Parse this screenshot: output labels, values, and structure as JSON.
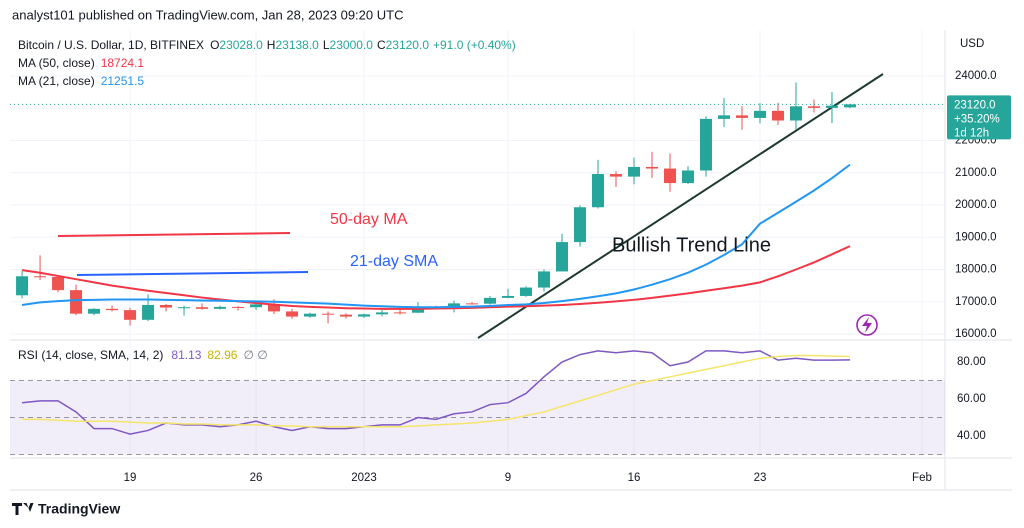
{
  "published": "analyst101 published on TradingView.com, Jan 28, 2023 09:20 UTC",
  "footer": "TradingView",
  "chart_data": [
    {
      "type": "candlestick",
      "title": "Bitcoin / U.S. Dollar, 1D, BITFINEX",
      "ohlc_header": [
        {
          "key": "O",
          "text": "23028.0"
        },
        {
          "key": "H",
          "text": "23138.0"
        },
        {
          "key": "L",
          "text": "23000.0"
        },
        {
          "key": "C",
          "text": "23120.0"
        }
      ],
      "change_text": "+91.0 (+0.40%)",
      "currency": "USD",
      "colors": {
        "up": "#26a69a",
        "down": "#ef5350"
      },
      "open": [
        17200,
        17790,
        17770,
        17360,
        16630,
        16780,
        16740,
        16440,
        16900,
        16820,
        16830,
        16780,
        16840,
        16830,
        16920,
        16700,
        16540,
        16630,
        16600,
        16540,
        16610,
        16670,
        16660,
        16850,
        16830,
        16950,
        16940,
        17120,
        17180,
        17440,
        17940,
        18850,
        19930,
        20960,
        20880,
        21180,
        21130,
        20680,
        21070,
        22670,
        22780,
        22700,
        22920,
        22620,
        23060,
        23010,
        23028
      ],
      "high": [
        17950,
        18440,
        17830,
        17530,
        16800,
        16880,
        16810,
        17230,
        16930,
        16880,
        16950,
        16880,
        16860,
        16960,
        17080,
        16780,
        16660,
        16700,
        16640,
        16630,
        16770,
        16760,
        16990,
        16880,
        17040,
        16990,
        17180,
        17400,
        17480,
        18000,
        19110,
        19990,
        21400,
        21050,
        21470,
        21650,
        21600,
        21200,
        22750,
        23320,
        23070,
        23160,
        23170,
        23800,
        23270,
        23500,
        23138
      ],
      "low": [
        17100,
        17670,
        17300,
        16580,
        16580,
        16700,
        16260,
        16400,
        16700,
        16570,
        16750,
        16760,
        16730,
        16750,
        16620,
        16470,
        16500,
        16330,
        16480,
        16500,
        16550,
        16600,
        16650,
        16760,
        16670,
        16910,
        16910,
        17110,
        17150,
        17320,
        17940,
        18710,
        19890,
        20560,
        20640,
        20840,
        20410,
        20650,
        20880,
        22420,
        22330,
        22530,
        22480,
        22330,
        22870,
        22540,
        23000
      ],
      "close": [
        17790,
        17770,
        17360,
        16630,
        16780,
        16740,
        16440,
        16900,
        16820,
        16830,
        16780,
        16840,
        16830,
        16920,
        16700,
        16540,
        16630,
        16600,
        16540,
        16610,
        16670,
        16660,
        16850,
        16830,
        16950,
        16940,
        17120,
        17180,
        17440,
        17940,
        18850,
        19930,
        20960,
        20880,
        21180,
        21130,
        20680,
        21070,
        22670,
        22780,
        22700,
        22920,
        22620,
        23060,
        23010,
        23080,
        23120
      ],
      "series": [
        {
          "name": "MA (50, close)",
          "color": "#f23645",
          "values": [
            17980,
            17900,
            17800,
            17700,
            17600,
            17500,
            17420,
            17340,
            17270,
            17200,
            17130,
            17070,
            17010,
            16960,
            16910,
            16870,
            16840,
            16820,
            16800,
            16790,
            16780,
            16780,
            16780,
            16790,
            16800,
            16810,
            16830,
            16850,
            16860,
            16880,
            16900,
            16930,
            16970,
            17010,
            17060,
            17120,
            17190,
            17260,
            17340,
            17420,
            17500,
            17600,
            17790,
            18000,
            18220,
            18470,
            18724.1
          ]
        },
        {
          "name": "MA (21, close)",
          "color": "#2196f3",
          "values": [
            16900,
            16980,
            17020,
            17050,
            17060,
            17070,
            17070,
            17070,
            17060,
            17050,
            17040,
            17030,
            17020,
            17010,
            17000,
            16980,
            16960,
            16940,
            16910,
            16880,
            16860,
            16840,
            16830,
            16830,
            16840,
            16850,
            16870,
            16900,
            16920,
            16960,
            17020,
            17090,
            17170,
            17260,
            17380,
            17530,
            17700,
            17900,
            18150,
            18450,
            18780,
            19420,
            19760,
            20100,
            20450,
            20830,
            21251.5
          ]
        }
      ],
      "last_price": {
        "text": "23120.0",
        "change": "+35.20%",
        "countdown": "1d 12h"
      },
      "annotations": [
        {
          "text": "50-day MA",
          "color": "#f23645"
        },
        {
          "text": "21-day SMA",
          "color": "#2962ff"
        },
        {
          "text": "Bullish Trend Line",
          "color": "#131722"
        }
      ],
      "ylim": [
        15814,
        25426
      ],
      "yticks": [
        {
          "value": 16000,
          "label": "16000.0"
        },
        {
          "value": 17000,
          "label": "17000.0"
        },
        {
          "value": 18000,
          "label": "18000.0"
        },
        {
          "value": 19000,
          "label": "19000.0"
        },
        {
          "value": 20000,
          "label": "20000.0"
        },
        {
          "value": 21000,
          "label": "21000.0"
        },
        {
          "value": 22000,
          "label": "22000.0"
        },
        {
          "value": 23000,
          "label": "23000.0"
        },
        {
          "value": 24000,
          "label": "24000.0"
        }
      ],
      "grid": true
    },
    {
      "type": "line",
      "title": "RSI (14, close, SMA, 14, 2)",
      "extra": "∅ ∅",
      "series": [
        {
          "name": "RSI",
          "color": "#7e57c2",
          "values": [
            58,
            59,
            59,
            53,
            44,
            44,
            41,
            43,
            47,
            46,
            46,
            45,
            46,
            48,
            45,
            43,
            45,
            44,
            44,
            45,
            46,
            46,
            50,
            49,
            52,
            53,
            57,
            58,
            63,
            72,
            80,
            84,
            86,
            85,
            86,
            85,
            78,
            80,
            86,
            86,
            85,
            86,
            81,
            82,
            81,
            81,
            81.13
          ]
        },
        {
          "name": "SMA",
          "color": "#f5e56b",
          "values": [
            49,
            49,
            48.5,
            48,
            48,
            48,
            47.5,
            47,
            47,
            46.5,
            46.5,
            46,
            46,
            46,
            45.5,
            45.5,
            45,
            45,
            45,
            45,
            45,
            45,
            45.5,
            46,
            46.5,
            47,
            48,
            49,
            51,
            53,
            56,
            59,
            62,
            65,
            68,
            70,
            72,
            74,
            76,
            78,
            80,
            82,
            83,
            83.5,
            83.5,
            83.2,
            82.96
          ]
        }
      ],
      "levels": [
        30,
        50,
        70
      ],
      "ylim": [
        28.1,
        91.9
      ],
      "yticks": [
        {
          "value": 40,
          "label": "40.00"
        },
        {
          "value": 60,
          "label": "60.00"
        },
        {
          "value": 80,
          "label": "80.00"
        }
      ],
      "xlim": [
        -0.67,
        51.28
      ],
      "xticks": [
        {
          "value": 6,
          "label": "19"
        },
        {
          "value": 13,
          "label": "26"
        },
        {
          "value": 19,
          "label": "2023"
        },
        {
          "value": 27,
          "label": "9"
        },
        {
          "value": 34,
          "label": "16"
        },
        {
          "value": 41,
          "label": "23"
        },
        {
          "value": 50,
          "label": "Feb"
        }
      ]
    }
  ]
}
